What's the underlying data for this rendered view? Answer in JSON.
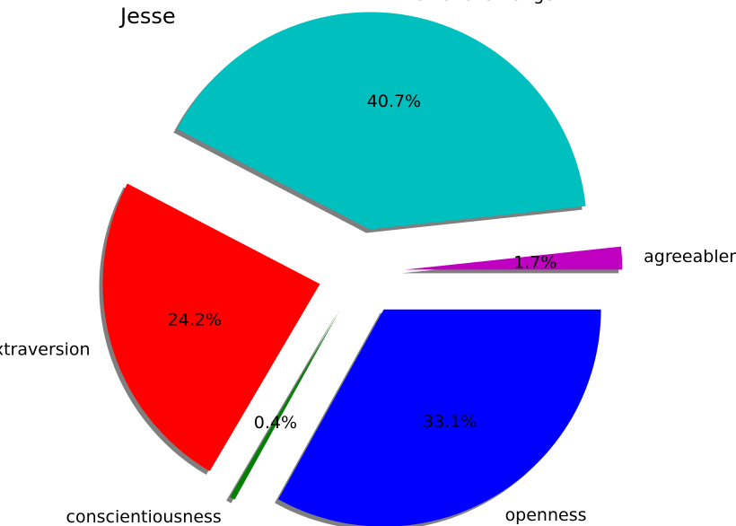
{
  "chart_data": {
    "type": "pie",
    "title": "Jesse",
    "shadow": true,
    "slices": [
      {
        "label": "agreeableness",
        "value": 1.7,
        "pct_label": "1.7%",
        "color": "#c000c0",
        "exploded": true
      },
      {
        "label": "emotional range",
        "value": 40.7,
        "pct_label": "40.7%",
        "color": "#00bfbf",
        "exploded": true
      },
      {
        "label": "extraversion",
        "value": 24.2,
        "pct_label": "24.2%",
        "color": "#ff0000",
        "exploded": true
      },
      {
        "label": "conscientiousness",
        "value": 0.4,
        "pct_label": "0.4%",
        "color": "#008000",
        "exploded": true
      },
      {
        "label": "openness",
        "value": 33.1,
        "pct_label": "33.1%",
        "color": "#0000ff",
        "exploded": true
      }
    ]
  }
}
